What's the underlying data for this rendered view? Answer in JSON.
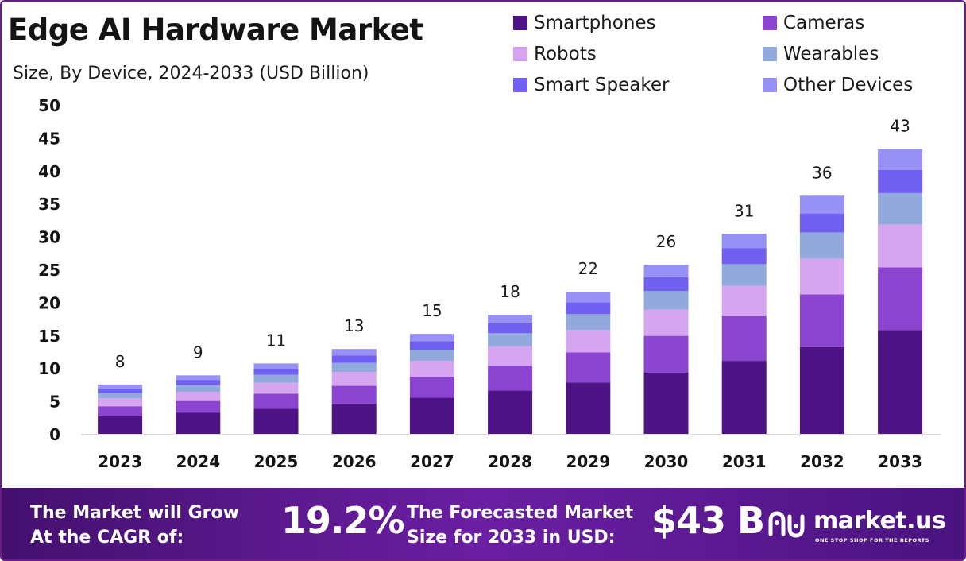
{
  "header": {
    "title": "Edge AI Hardware Market",
    "subtitle": "Size, By Device, 2024-2033 (USD Billion)"
  },
  "chart_data": {
    "type": "bar",
    "stacked": true,
    "categories": [
      "2023",
      "2024",
      "2025",
      "2026",
      "2027",
      "2028",
      "2029",
      "2030",
      "2031",
      "2032",
      "2033"
    ],
    "totals": [
      "8",
      "9",
      "11",
      "13",
      "15",
      "18",
      "22",
      "26",
      "31",
      "36",
      "43"
    ],
    "series": [
      {
        "name": "Smartphones",
        "color": "#4e1485",
        "values": [
          2.7,
          3.2,
          3.8,
          4.6,
          5.5,
          6.6,
          7.8,
          9.3,
          11.1,
          13.2,
          15.8
        ]
      },
      {
        "name": "Cameras",
        "color": "#8a44cf",
        "values": [
          1.5,
          1.8,
          2.3,
          2.7,
          3.2,
          3.8,
          4.6,
          5.6,
          6.8,
          8.0,
          9.5
        ]
      },
      {
        "name": "Robots",
        "color": "#d5a5f0",
        "values": [
          1.2,
          1.4,
          1.7,
          2.1,
          2.4,
          2.9,
          3.4,
          4.0,
          4.6,
          5.4,
          6.5
        ]
      },
      {
        "name": "Wearables",
        "color": "#91a9dd",
        "values": [
          0.8,
          1.0,
          1.2,
          1.4,
          1.7,
          2.0,
          2.4,
          2.8,
          3.3,
          4.0,
          4.8
        ]
      },
      {
        "name": "Smart Speaker",
        "color": "#7160ef",
        "values": [
          0.7,
          0.8,
          0.9,
          1.1,
          1.3,
          1.5,
          1.8,
          2.1,
          2.4,
          2.9,
          3.5
        ]
      },
      {
        "name": "Other Devices",
        "color": "#9790f5",
        "values": [
          0.6,
          0.7,
          0.8,
          1.0,
          1.1,
          1.3,
          1.6,
          1.9,
          2.2,
          2.7,
          3.2
        ]
      }
    ],
    "title": "Edge AI Hardware Market",
    "subtitle": "Size, By Device, 2024-2033 (USD Billion)",
    "xlabel": "",
    "ylabel": "",
    "ylim": [
      0,
      50
    ],
    "yticks": [
      "0",
      "5",
      "10",
      "15",
      "20",
      "25",
      "30",
      "35",
      "40",
      "45",
      "50"
    ],
    "grid": false,
    "legend_position": "top-right"
  },
  "banner": {
    "cagr_text_line1": "The Market will Grow",
    "cagr_text_line2": "At the CAGR of:",
    "cagr_value": "19.2%",
    "forecast_text_line1": "The Forecasted Market",
    "forecast_text_line2": "Size for 2033 in USD:",
    "forecast_value": "$43 B",
    "brand_name": "market.us",
    "brand_tagline": "ONE STOP SHOP FOR THE REPORTS",
    "brand_logo_icon": "market-us-logo-icon"
  }
}
